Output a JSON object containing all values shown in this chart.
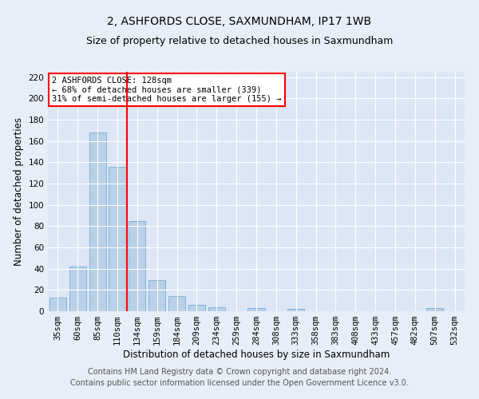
{
  "title": "2, ASHFORDS CLOSE, SAXMUNDHAM, IP17 1WB",
  "subtitle": "Size of property relative to detached houses in Saxmundham",
  "xlabel": "Distribution of detached houses by size in Saxmundham",
  "ylabel": "Number of detached properties",
  "categories": [
    "35sqm",
    "60sqm",
    "85sqm",
    "110sqm",
    "134sqm",
    "159sqm",
    "184sqm",
    "209sqm",
    "234sqm",
    "259sqm",
    "284sqm",
    "308sqm",
    "333sqm",
    "358sqm",
    "383sqm",
    "408sqm",
    "433sqm",
    "457sqm",
    "482sqm",
    "507sqm",
    "532sqm"
  ],
  "values": [
    13,
    42,
    168,
    136,
    85,
    29,
    14,
    6,
    4,
    0,
    3,
    0,
    2,
    0,
    0,
    0,
    0,
    0,
    0,
    3,
    0
  ],
  "bar_color": "#b8d0e8",
  "bar_edge_color": "#7aadd4",
  "vline_color": "red",
  "ylim": [
    0,
    225
  ],
  "yticks": [
    0,
    20,
    40,
    60,
    80,
    100,
    120,
    140,
    160,
    180,
    200,
    220
  ],
  "annotation_title": "2 ASHFORDS CLOSE: 128sqm",
  "annotation_line1": "← 68% of detached houses are smaller (339)",
  "annotation_line2": "31% of semi-detached houses are larger (155) →",
  "footer_line1": "Contains HM Land Registry data © Crown copyright and database right 2024.",
  "footer_line2": "Contains public sector information licensed under the Open Government Licence v3.0.",
  "bg_color": "#e8eef7",
  "plot_bg_color": "#dce6f5",
  "grid_color": "white",
  "title_fontsize": 10,
  "subtitle_fontsize": 9,
  "axis_label_fontsize": 8.5,
  "tick_fontsize": 7.5,
  "footer_fontsize": 7
}
